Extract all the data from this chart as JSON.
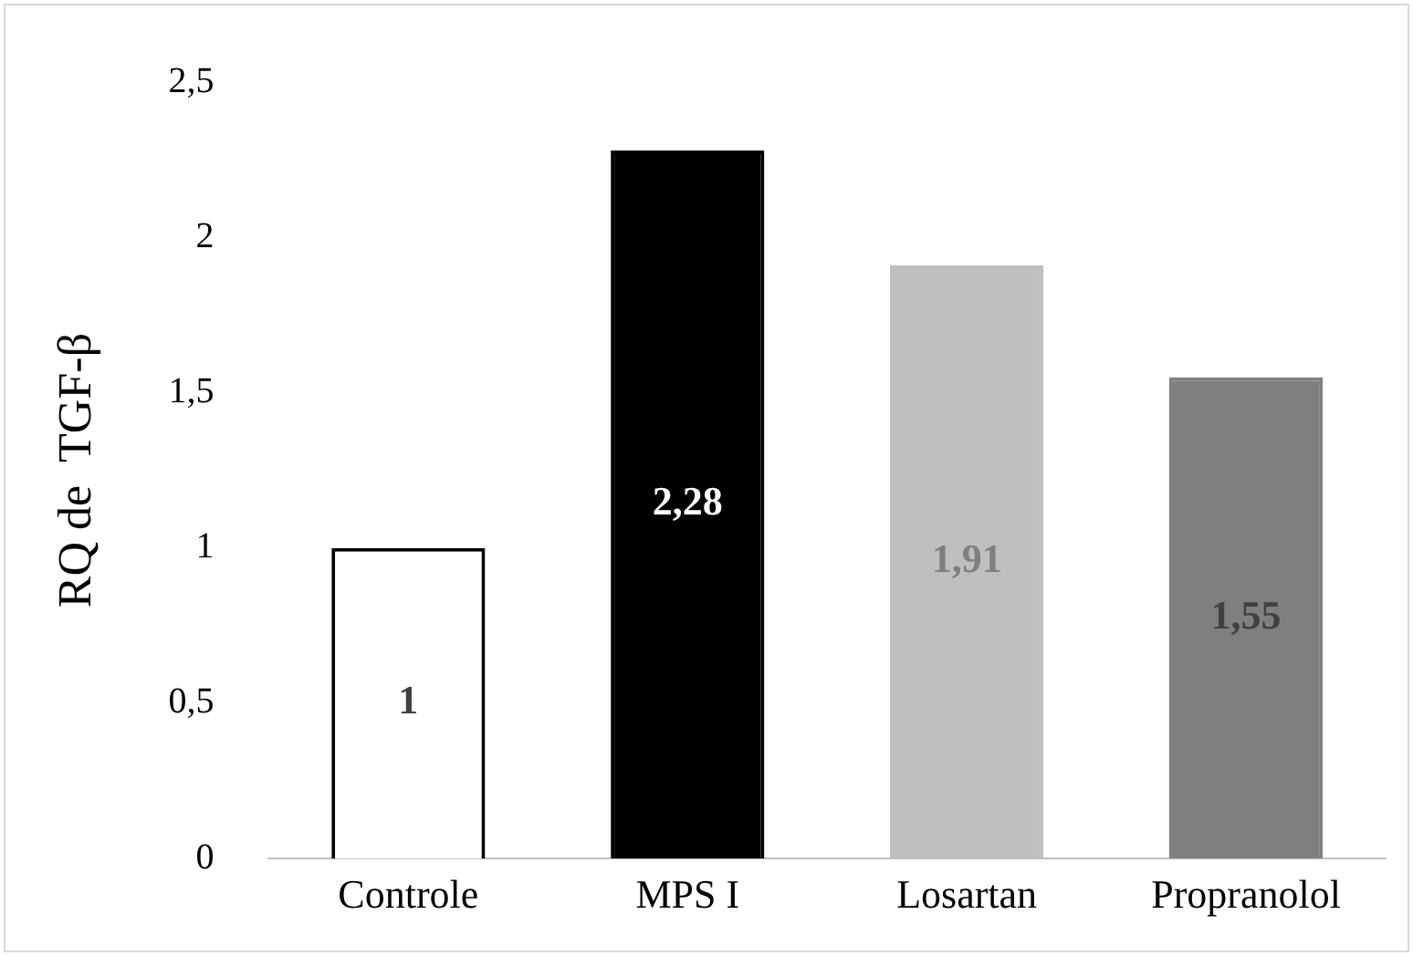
{
  "chart_data": {
    "type": "bar",
    "ylabel": "RQ de  TGF-β",
    "categories": [
      "Controle",
      "MPS I",
      "Losartan",
      "Propranolol"
    ],
    "values": [
      1,
      2.28,
      1.91,
      1.55
    ],
    "colors": [
      "#ffffff",
      "#000000",
      "#bfbfbf",
      "#7f7f7f"
    ],
    "value_labels": [
      "1",
      "2,28",
      "1,91",
      "1,55"
    ],
    "ylim": [
      0,
      2.5
    ],
    "yticks": [
      0,
      {
        "value": 0.5,
        "label": "0,5"
      },
      1,
      {
        "value": 1.5,
        "label": "1,5"
      },
      2,
      {
        "value": 2.5,
        "label": "2,5"
      }
    ],
    "grid": false,
    "legend": false
  }
}
